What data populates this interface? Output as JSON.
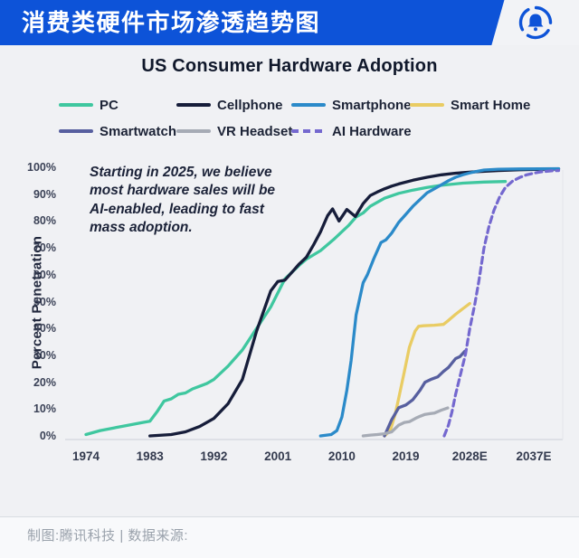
{
  "header": {
    "title": "消费类硬件市场渗透趋势图",
    "logo_icon": "bell-in-circle",
    "accent_color": "#0d53d8"
  },
  "chart": {
    "title": "US Consumer Hardware Adoption",
    "annotation": "Starting in 2025, we believe\nmost hardware sales will be\nAI-enabled, leading to fast\nmass adoption."
  },
  "footer": {
    "credit": "制图:腾讯科技 | 数据来源:"
  },
  "chart_data": {
    "type": "line",
    "title": "US Consumer Hardware Adoption",
    "xlabel": "",
    "ylabel": "Percent Penetration",
    "x_range": [
      1971,
      2041
    ],
    "ylim": [
      0,
      100
    ],
    "grid": false,
    "legend_position": "top",
    "x_ticks": [
      {
        "year": 1974,
        "label": "1974"
      },
      {
        "year": 1983,
        "label": "1983"
      },
      {
        "year": 1992,
        "label": "1992"
      },
      {
        "year": 2001,
        "label": "2001"
      },
      {
        "year": 2010,
        "label": "2010"
      },
      {
        "year": 2019,
        "label": "2019"
      },
      {
        "year": 2028,
        "label": "2028E"
      },
      {
        "year": 2037,
        "label": "2037E"
      }
    ],
    "y_ticks": [
      {
        "value": 0,
        "label": "0%"
      },
      {
        "value": 10,
        "label": "10%"
      },
      {
        "value": 20,
        "label": "20%"
      },
      {
        "value": 30,
        "label": "30%"
      },
      {
        "value": 40,
        "label": "40%"
      },
      {
        "value": 50,
        "label": "50%"
      },
      {
        "value": 60,
        "label": "60%"
      },
      {
        "value": 70,
        "label": "70%"
      },
      {
        "value": 80,
        "label": "80%"
      },
      {
        "value": 90,
        "label": "90%"
      },
      {
        "value": 100,
        "label": "100%"
      }
    ],
    "series": [
      {
        "name": "PC",
        "color": "#3fc79f",
        "dashed": false,
        "points": [
          [
            1974,
            0.5
          ],
          [
            1976,
            2
          ],
          [
            1978,
            3
          ],
          [
            1980,
            4
          ],
          [
            1982,
            5
          ],
          [
            1983,
            5.5
          ],
          [
            1984,
            9
          ],
          [
            1985,
            13
          ],
          [
            1986,
            13.8
          ],
          [
            1987,
            15.5
          ],
          [
            1988,
            16
          ],
          [
            1989,
            17.5
          ],
          [
            1990,
            18.5
          ],
          [
            1991,
            19.5
          ],
          [
            1992,
            21
          ],
          [
            1994,
            26
          ],
          [
            1996,
            32
          ],
          [
            1998,
            40
          ],
          [
            2000,
            48
          ],
          [
            2002,
            58.5
          ],
          [
            2003,
            61
          ],
          [
            2004,
            63.5
          ],
          [
            2005,
            65.8
          ],
          [
            2007,
            69
          ],
          [
            2009,
            73.5
          ],
          [
            2011,
            78.5
          ],
          [
            2012,
            81.5
          ],
          [
            2013,
            83
          ],
          [
            2014,
            85.5
          ],
          [
            2016,
            88.5
          ],
          [
            2018,
            90.3
          ],
          [
            2020,
            91.5
          ],
          [
            2022,
            92.5
          ],
          [
            2024,
            93.3
          ],
          [
            2027,
            94.1
          ],
          [
            2030,
            94.5
          ],
          [
            2033,
            94.7
          ]
        ]
      },
      {
        "name": "Cellphone",
        "color": "#161d3a",
        "dashed": false,
        "points": [
          [
            1983,
            0
          ],
          [
            1986,
            0.5
          ],
          [
            1988,
            1.5
          ],
          [
            1990,
            3.5
          ],
          [
            1992,
            6.5
          ],
          [
            1994,
            12
          ],
          [
            1996,
            21
          ],
          [
            1998,
            39
          ],
          [
            2000,
            54
          ],
          [
            2001,
            57.5
          ],
          [
            2002,
            58
          ],
          [
            2003,
            61
          ],
          [
            2004,
            64
          ],
          [
            2005,
            66.5
          ],
          [
            2006,
            71
          ],
          [
            2007,
            76
          ],
          [
            2008,
            82
          ],
          [
            2008.7,
            84.5
          ],
          [
            2009.6,
            80
          ],
          [
            2010.7,
            84.3
          ],
          [
            2011.3,
            83
          ],
          [
            2011.9,
            81.7
          ],
          [
            2013,
            86.5
          ],
          [
            2014,
            89.5
          ],
          [
            2015,
            90.8
          ],
          [
            2016,
            92
          ],
          [
            2017,
            93
          ],
          [
            2018,
            93.8
          ],
          [
            2020,
            95.2
          ],
          [
            2022,
            96.3
          ],
          [
            2024,
            97.2
          ],
          [
            2026,
            97.8
          ],
          [
            2029,
            98.4
          ],
          [
            2032,
            98.8
          ],
          [
            2035,
            99.1
          ],
          [
            2040.5,
            99.4
          ]
        ]
      },
      {
        "name": "Smartphone",
        "color": "#2b8ac9",
        "dashed": false,
        "points": [
          [
            2007,
            0
          ],
          [
            2008.5,
            0.5
          ],
          [
            2009.3,
            2
          ],
          [
            2010,
            7
          ],
          [
            2010.7,
            17
          ],
          [
            2011.3,
            28
          ],
          [
            2012,
            45
          ],
          [
            2013,
            57
          ],
          [
            2013.6,
            60
          ],
          [
            2014.5,
            66
          ],
          [
            2015.5,
            72
          ],
          [
            2016.2,
            73
          ],
          [
            2017,
            75.5
          ],
          [
            2018,
            79.5
          ],
          [
            2019,
            82.5
          ],
          [
            2020,
            85.5
          ],
          [
            2021,
            88
          ],
          [
            2022,
            90.5
          ],
          [
            2023,
            92
          ],
          [
            2024,
            93.5
          ],
          [
            2025,
            95
          ],
          [
            2026,
            96.3
          ],
          [
            2027,
            97.2
          ],
          [
            2028,
            97.9
          ],
          [
            2029,
            98.5
          ],
          [
            2030,
            99
          ],
          [
            2032,
            99.3
          ],
          [
            2035,
            99.4
          ],
          [
            2040.5,
            99.5
          ]
        ]
      },
      {
        "name": "Smart Home",
        "color": "#e9cc63",
        "dashed": false,
        "points": [
          [
            2016,
            0
          ],
          [
            2016.8,
            2
          ],
          [
            2017.5,
            8
          ],
          [
            2018,
            14
          ],
          [
            2018.8,
            24
          ],
          [
            2019.5,
            33
          ],
          [
            2020.3,
            39
          ],
          [
            2020.8,
            40.8
          ],
          [
            2021.5,
            41
          ],
          [
            2023,
            41.2
          ],
          [
            2024.3,
            41.5
          ],
          [
            2025,
            43
          ],
          [
            2026,
            45.3
          ],
          [
            2027,
            47.3
          ],
          [
            2028,
            49.3
          ]
        ]
      },
      {
        "name": "Smartwatch",
        "color": "#575f9f",
        "dashed": false,
        "points": [
          [
            2016,
            0
          ],
          [
            2017,
            6
          ],
          [
            2018,
            10.5
          ],
          [
            2019,
            11.5
          ],
          [
            2020,
            13.5
          ],
          [
            2021,
            17
          ],
          [
            2021.7,
            20
          ],
          [
            2022.5,
            21
          ],
          [
            2023.5,
            22
          ],
          [
            2024.3,
            24
          ],
          [
            2025,
            25.5
          ],
          [
            2026,
            28.8
          ],
          [
            2026.6,
            29.5
          ],
          [
            2027.3,
            31.5
          ]
        ]
      },
      {
        "name": "VR Headset",
        "color": "#a6abb5",
        "dashed": false,
        "points": [
          [
            2013,
            0
          ],
          [
            2014,
            0.3
          ],
          [
            2015,
            0.5
          ],
          [
            2016,
            0.8
          ],
          [
            2017,
            1.5
          ],
          [
            2018,
            4
          ],
          [
            2018.8,
            5
          ],
          [
            2019.5,
            5.3
          ],
          [
            2020.4,
            6.6
          ],
          [
            2021,
            7.3
          ],
          [
            2021.7,
            8
          ],
          [
            2022.5,
            8.3
          ],
          [
            2023,
            8.5
          ],
          [
            2024,
            9.6
          ],
          [
            2024.9,
            10.4
          ]
        ]
      },
      {
        "name": "AI Hardware",
        "color": "#7468cf",
        "dashed": true,
        "points": [
          [
            2024.4,
            0
          ],
          [
            2025,
            4
          ],
          [
            2025.5,
            9
          ],
          [
            2026,
            15.5
          ],
          [
            2026.7,
            23
          ],
          [
            2027.4,
            30.5
          ],
          [
            2028,
            40
          ],
          [
            2028.7,
            49
          ],
          [
            2029.3,
            58
          ],
          [
            2030,
            70
          ],
          [
            2030.7,
            78
          ],
          [
            2031.4,
            84
          ],
          [
            2032.2,
            89
          ],
          [
            2033,
            92.5
          ],
          [
            2034,
            94.8
          ],
          [
            2035,
            96.2
          ],
          [
            2036,
            97.2
          ],
          [
            2037,
            97.8
          ],
          [
            2038,
            98.3
          ],
          [
            2039.5,
            98.7
          ],
          [
            2040.5,
            98.8
          ]
        ]
      }
    ]
  }
}
